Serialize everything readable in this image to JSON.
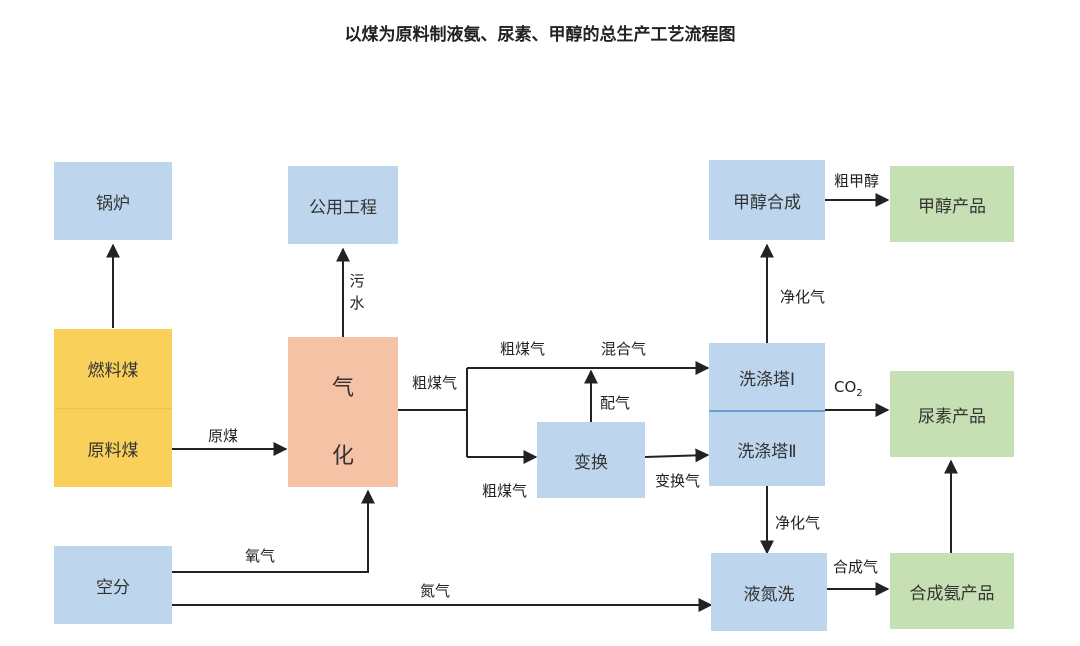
{
  "title": "以煤为原料制液氨、尿素、甲醇的总生产工艺流程图",
  "nodes": {
    "boiler": "锅炉",
    "utilities": "公用工程",
    "fuel_coal": "燃料煤",
    "raw_coal": "原料煤",
    "gasification_1": "气",
    "gasification_2": "化",
    "air_separation": "空分",
    "shift": "变换",
    "scrubber_1": "洗涤塔Ⅰ",
    "scrubber_2": "洗涤塔Ⅱ",
    "methanol_synthesis": "甲醇合成",
    "methanol_product": "甲醇产品",
    "urea_product": "尿素产品",
    "liquid_nitrogen_wash": "液氮洗",
    "ammonia_product": "合成氨产品"
  },
  "edges": {
    "raw_coal": "原煤",
    "wastewater": "污水",
    "crude_gas_main": "粗煤气",
    "crude_gas_upper": "粗煤气",
    "crude_gas_lower": "粗煤气",
    "mixed_gas": "混合气",
    "blend_gas": "配气",
    "shifted_gas": "变换气",
    "purified_gas_up": "净化气",
    "purified_gas_down": "净化气",
    "crude_methanol": "粗甲醇",
    "co2_main": "CO",
    "co2_sub": "2",
    "synthesis_gas": "合成气",
    "oxygen": "氧气",
    "nitrogen": "氮气"
  },
  "colors": {
    "blue_box": "#bdd6ee",
    "yellow_box": "#f8d05a",
    "orange_box": "#f5c2a6",
    "green_box": "#c6e0b4",
    "line": "#222222"
  }
}
